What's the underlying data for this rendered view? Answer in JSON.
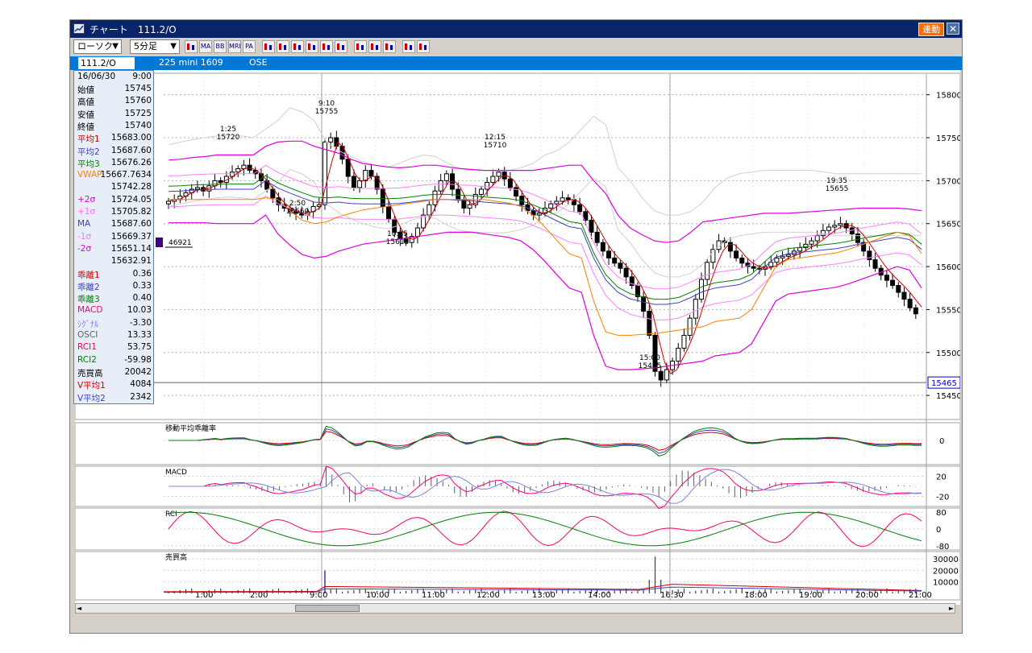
{
  "window": {
    "title": "チャート　111.2/O",
    "link_label": "連動",
    "close_symbol": "✕"
  },
  "toolbar": {
    "chart_type": "ローソク",
    "interval": "5分足",
    "icons": [
      "chart-settings-icon",
      "ma-icon",
      "bb-icon",
      "mre-icon",
      "pa-icon",
      "line-chart-icon",
      "point-figure-icon",
      "renko-icon",
      "zoom-icon",
      "stock-value-icon",
      "indicator-icon",
      "draw-line-icon",
      "pointer-icon",
      "erase-icon",
      "search-icon",
      "close-line-icon"
    ],
    "icon_labels": [
      "",
      "MA",
      "BB",
      "MRE",
      "PA",
      "",
      "",
      "",
      "",
      "",
      "",
      "",
      "",
      "",
      "",
      ""
    ]
  },
  "symbol": {
    "code": "111.2/O",
    "name": "225 mini 1609",
    "exchange": "OSE"
  },
  "info": {
    "date": "16/06/30",
    "time": "9:00",
    "rows": [
      {
        "label": "始値",
        "value": "15745",
        "color": "#000000"
      },
      {
        "label": "高値",
        "value": "15760",
        "color": "#000000"
      },
      {
        "label": "安値",
        "value": "15725",
        "color": "#000000"
      },
      {
        "label": "終値",
        "value": "15740",
        "color": "#000000"
      },
      {
        "label": "平均1",
        "value": "15683.00",
        "color": "#d00000"
      },
      {
        "label": "平均2",
        "value": "15687.60",
        "color": "#4040c0"
      },
      {
        "label": "平均3",
        "value": "15676.26",
        "color": "#008000"
      },
      {
        "label": "VWAP",
        "value": "15667.7634",
        "color": "#ff8000"
      },
      {
        "label": "",
        "value": "15742.28",
        "color": "#000000"
      },
      {
        "label": "+2σ",
        "value": "15724.05",
        "color": "#e000e0"
      },
      {
        "label": "+1σ",
        "value": "15705.82",
        "color": "#ff70ff"
      },
      {
        "label": "MA",
        "value": "15687.60",
        "color": "#4040c0"
      },
      {
        "label": "-1σ",
        "value": "15669.37",
        "color": "#ff70ff"
      },
      {
        "label": "-2σ",
        "value": "15651.14",
        "color": "#e000e0"
      },
      {
        "label": "",
        "value": "15632.91",
        "color": "#000000"
      },
      {
        "label": "乖離1",
        "value": "0.36",
        "color": "#d00000"
      },
      {
        "label": "乖離2",
        "value": "0.33",
        "color": "#4040c0"
      },
      {
        "label": "乖離3",
        "value": "0.40",
        "color": "#008000"
      },
      {
        "label": "MACD",
        "value": "10.03",
        "color": "#ff0080"
      },
      {
        "label": "ｼｸﾞﾅﾙ",
        "value": "-3.30",
        "color": "#8080e0"
      },
      {
        "label": "OSCI",
        "value": "13.33",
        "color": "#606060"
      },
      {
        "label": "RCI1",
        "value": "53.75",
        "color": "#ff0040"
      },
      {
        "label": "RCI2",
        "value": "-59.98",
        "color": "#008000"
      },
      {
        "label": "売買高",
        "value": "20042",
        "color": "#000000"
      },
      {
        "label": "V平均1",
        "value": "4084",
        "color": "#d00000"
      },
      {
        "label": "V平均2",
        "value": "2342",
        "color": "#4040c0"
      }
    ]
  },
  "chart_data": {
    "type": "candlestick",
    "price_axis": {
      "ticks": [
        15450,
        15500,
        15550,
        15600,
        15650,
        15700,
        15750,
        15800
      ],
      "range": [
        15422,
        15825
      ]
    },
    "current_price": "15465",
    "x_tick_labels": [
      "1:00",
      "2:00",
      "9:00",
      "10:00",
      "11:00",
      "12:00",
      "13:00",
      "14:00",
      "16:30",
      "18:00",
      "19:00",
      "20:00",
      "21:00"
    ],
    "annotations": [
      {
        "label": "1:25",
        "value": "15720"
      },
      {
        "label": "2:50",
        "value": "15660"
      },
      {
        "label": "9:10",
        "value": "15755"
      },
      {
        "label": "10:35",
        "value": "15615"
      },
      {
        "label": "12:15",
        "value": "15710"
      },
      {
        "label": "15:00",
        "value": "15465"
      },
      {
        "label": "19:35",
        "value": "15655"
      }
    ],
    "volume_marker": "46921",
    "close_series": [
      15676,
      15678,
      15682,
      15686,
      15690,
      15692,
      15688,
      15694,
      15700,
      15698,
      15705,
      15710,
      15714,
      15718,
      15712,
      15708,
      15700,
      15690,
      15680,
      15672,
      15668,
      15664,
      15662,
      15660,
      15664,
      15670,
      15672,
      15745,
      15750,
      15740,
      15725,
      15705,
      15692,
      15700,
      15712,
      15705,
      15690,
      15670,
      15655,
      15640,
      15632,
      15628,
      15635,
      15645,
      15660,
      15672,
      15688,
      15700,
      15708,
      15690,
      15678,
      15668,
      15672,
      15684,
      15690,
      15698,
      15705,
      15710,
      15702,
      15692,
      15682,
      15672,
      15665,
      15660,
      15662,
      15668,
      15673,
      15676,
      15680,
      15678,
      15672,
      15664,
      15654,
      15640,
      15628,
      15618,
      15610,
      15604,
      15598,
      15588,
      15578,
      15565,
      15548,
      15520,
      15478,
      15468,
      15480,
      15490,
      15505,
      15520,
      15540,
      15562,
      15585,
      15605,
      15620,
      15630,
      15628,
      15618,
      15610,
      15604,
      15600,
      15598,
      15597,
      15600,
      15605,
      15610,
      15612,
      15614,
      15618,
      15622,
      15626,
      15630,
      15636,
      15642,
      15646,
      15648,
      15650,
      15645,
      15638,
      15628,
      15618,
      15608,
      15598,
      15590,
      15584,
      15578,
      15570,
      15562,
      15552,
      15545
    ],
    "ma_series": {
      "plus3": [
        15742,
        15745,
        15748,
        15750,
        15752,
        15753,
        15752,
        15750,
        15760,
        15770,
        15785,
        15780,
        15770,
        15745,
        15735,
        15728,
        15722,
        15718,
        15716,
        15720,
        15726,
        15730,
        15728,
        15720,
        15714,
        15712,
        15712,
        15711,
        15712,
        15715,
        15720,
        15730,
        15735,
        15745,
        15760,
        15775,
        15765,
        15715,
        15700,
        15680,
        15665,
        15660,
        15660,
        15664,
        15675,
        15692,
        15703,
        15708,
        15710,
        15712,
        15712,
        15712,
        15712,
        15712,
        15710,
        15708,
        15708,
        15708,
        15708,
        15708,
        15708,
        15708,
        15708
      ],
      "plus2": [
        15724,
        15725,
        15727,
        15728,
        15730,
        15730,
        15730,
        15730,
        15740,
        15745,
        15746,
        15746,
        15740,
        15736,
        15732,
        15725,
        15720,
        15718,
        15716,
        15715,
        15716,
        15718,
        15718,
        15716,
        15714,
        15713,
        15712,
        15712,
        15712,
        15712,
        15712,
        15714,
        15716,
        15718,
        15718,
        15700,
        15685,
        15660,
        15645,
        15637,
        15630,
        15628,
        15630,
        15640,
        15652,
        15654,
        15656,
        15658,
        15660,
        15662,
        15662,
        15662,
        15663,
        15664,
        15665,
        15666,
        15667,
        15668,
        15668,
        15668,
        15668,
        15667,
        15665
      ],
      "minus2": [
        15651,
        15651,
        15651,
        15651,
        15650,
        15650,
        15650,
        15650,
        15660,
        15638,
        15625,
        15614,
        15610,
        15612,
        15618,
        15622,
        15626,
        15628,
        15630,
        15632,
        15634,
        15636,
        15638,
        15640,
        15640,
        15640,
        15638,
        15636,
        15634,
        15630,
        15620,
        15606,
        15590,
        15575,
        15570,
        15520,
        15484,
        15480,
        15480,
        15481,
        15482,
        15484,
        15486,
        15488,
        15490,
        15496,
        15498,
        15500,
        15510,
        15535,
        15560,
        15568,
        15570,
        15572,
        15574,
        15576,
        15580,
        15585,
        15590,
        15595,
        15600,
        15596,
        15575
      ]
    },
    "volume_axis": {
      "ticks": [
        30000,
        20000,
        10000
      ],
      "range": [
        0,
        35000
      ]
    },
    "indicator_axes": {
      "kairi": [
        0
      ],
      "macd": [
        20,
        -20
      ],
      "rci": [
        80,
        0,
        -80
      ]
    },
    "panels": [
      {
        "name": "kairi",
        "label": "移動平均乖離率"
      },
      {
        "name": "macd",
        "label": "MACD"
      },
      {
        "name": "rci",
        "label": "RCI"
      },
      {
        "name": "volume",
        "label": "売買高"
      }
    ]
  },
  "scrollbar": {
    "left_arrow": "◄",
    "right_arrow": "►"
  }
}
